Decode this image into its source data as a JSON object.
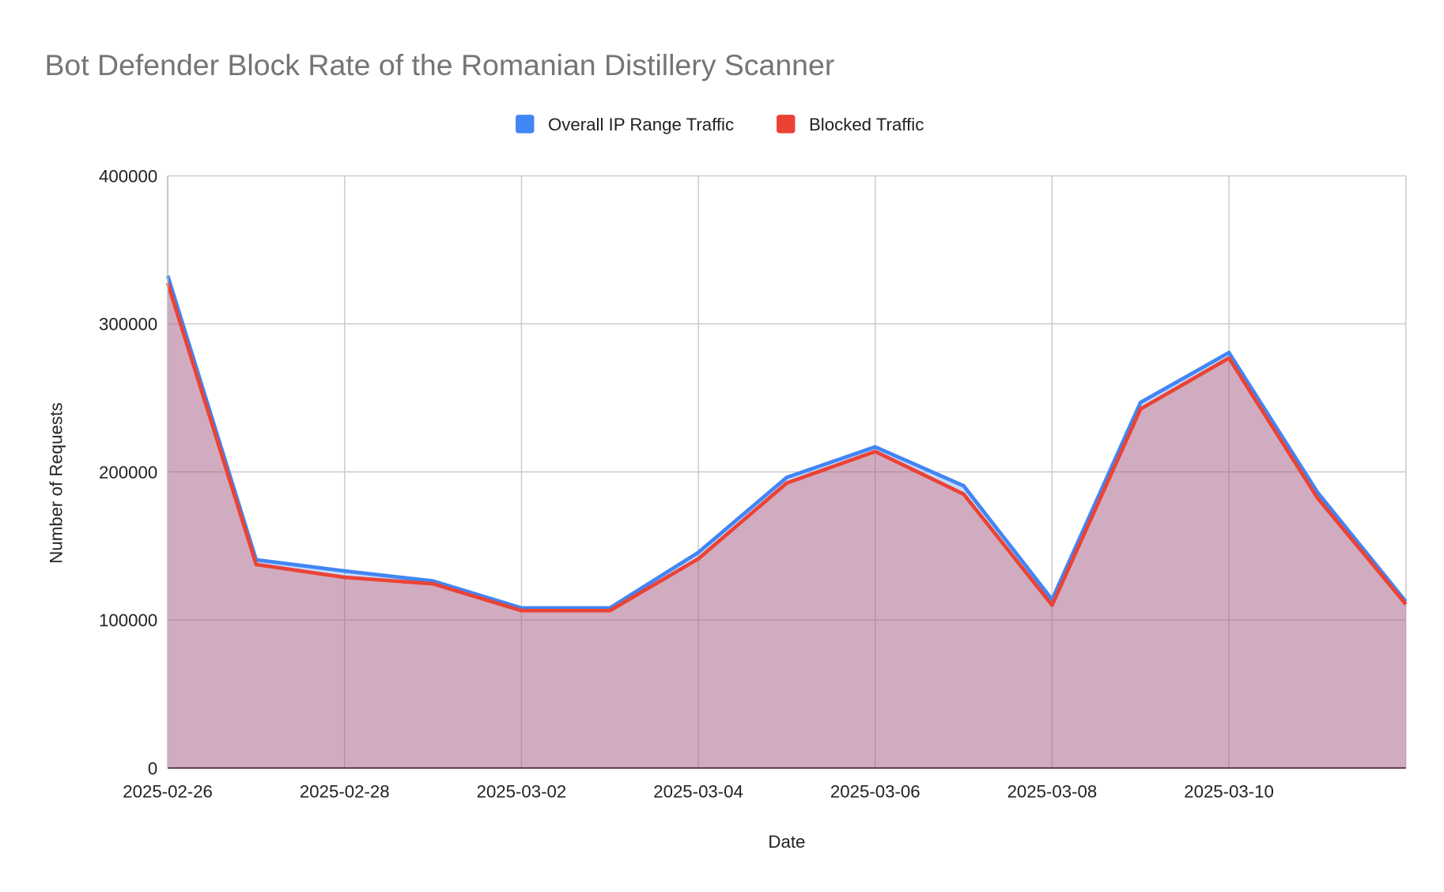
{
  "chart_data": {
    "type": "area",
    "title": "Bot Defender Block Rate of the Romanian Distillery Scanner",
    "xlabel": "Date",
    "ylabel": "Number of Requests",
    "ylim": [
      0,
      400000
    ],
    "yticks": [
      "0",
      "100000",
      "200000",
      "300000",
      "400000"
    ],
    "xticks": [
      "2025-02-26",
      "2025-02-28",
      "2025-03-02",
      "2025-03-04",
      "2025-03-06",
      "2025-03-08",
      "2025-03-10"
    ],
    "grid": true,
    "legend_position": "top",
    "x": [
      "2025-02-26",
      "2025-02-27",
      "2025-02-28",
      "2025-03-01",
      "2025-03-02",
      "2025-03-03",
      "2025-03-04",
      "2025-03-05",
      "2025-03-06",
      "2025-03-07",
      "2025-03-08",
      "2025-03-09",
      "2025-03-10",
      "2025-03-11",
      "2025-03-12"
    ],
    "series": [
      {
        "name": "Overall IP Range Traffic",
        "color": "#4285F4",
        "values": [
          332500,
          140600,
          133100,
          126300,
          108100,
          108100,
          145600,
          196300,
          216900,
          190600,
          113800,
          246900,
          280600,
          186300,
          112500
        ]
      },
      {
        "name": "Blocked Traffic",
        "color": "#EA4335",
        "values": [
          327500,
          137500,
          128800,
          124400,
          106300,
          106300,
          141300,
          192500,
          213800,
          185000,
          110000,
          242500,
          276900,
          182500,
          110600
        ]
      }
    ]
  }
}
